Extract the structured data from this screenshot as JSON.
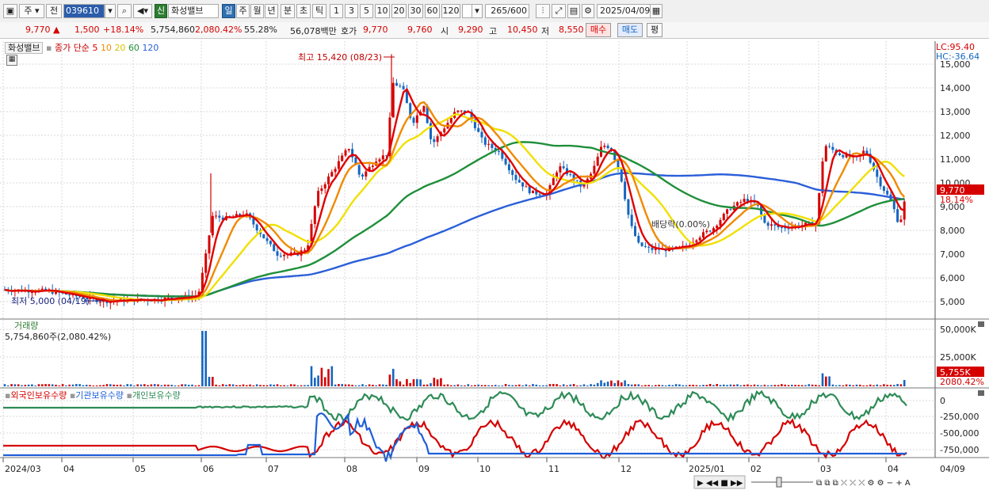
{
  "toolbar": {
    "market": "주",
    "period_kind": "전",
    "code": "039610",
    "status_badge": "신",
    "stock_name": "화성밸브",
    "period_tabs": [
      "일",
      "주",
      "월",
      "년",
      "분",
      "초",
      "틱"
    ],
    "interval_tabs": [
      "1",
      "3",
      "5",
      "10",
      "20",
      "30",
      "60",
      "120"
    ],
    "count_value": "265",
    "count_total": "/600",
    "date": "2025/04/09"
  },
  "quote": {
    "price": "9,770",
    "arrow": "▲",
    "change": "1,500",
    "change_pct": "+18.14%",
    "volume": "5,754,860",
    "volume_ratio": "2,080.42%",
    "turnover": "55.28%",
    "amount": "56,078백만",
    "bid_label": "호가",
    "bid1": "9,770",
    "bid2": "9,760",
    "open_label": "시",
    "open": "9,290",
    "high_label": "고",
    "high": "10,450",
    "low_label": "저",
    "low": "8,550",
    "buy_btn": "매수",
    "sell_btn": "매도",
    "eval_btn": "평"
  },
  "price_panel": {
    "stock_chip": "화성밸브",
    "ma_label": "종가 단순",
    "ma_periods": [
      "5",
      "10",
      "20",
      "60",
      "120"
    ],
    "lc": "LC:95.40",
    "hc": "HC:-36.64",
    "y_ticks": [
      "15,000",
      "14,000",
      "13,000",
      "12,000",
      "11,000",
      "10,000",
      "9,000",
      "8,000",
      "7,000",
      "6,000",
      "5,000"
    ],
    "high_note": "최고 15,420 (08/23)",
    "low_note": "최저 5,000 (04/19)",
    "ex_div_note": "배당락(0.00%)",
    "cur_price_tag": "9,770",
    "cur_pct_tag": "18.14%"
  },
  "volume_panel": {
    "title": "거래량",
    "value": "5,754,860주(2,080.42%)",
    "y_ticks": [
      "50,000K",
      "25,000K"
    ],
    "cur_tag": "5,755K",
    "cur_pct": "2080.42%"
  },
  "holding_panel": {
    "legend": [
      "외국인보유수량",
      "기관보유수량",
      "개인보유수량"
    ],
    "y_ticks": [
      "0",
      "-250,000",
      "-500,000",
      "-750,000"
    ]
  },
  "x_axis": {
    "labels": [
      "2024/03",
      "04",
      "05",
      "06",
      "07",
      "08",
      "09",
      "10",
      "11",
      "12",
      "2025/01",
      "02",
      "03",
      "04"
    ],
    "right_label": "04/09"
  },
  "colors": {
    "up": "#d50000",
    "down": "#1565c0",
    "ma5": "#e00000",
    "ma10": "#f08a00",
    "ma20": "#f0e000",
    "ma60": "#1f8f3a",
    "ma120": "#2a5fd8",
    "foreign": "#d50000",
    "institution": "#1e5fd8",
    "individual": "#2e8b57"
  }
}
